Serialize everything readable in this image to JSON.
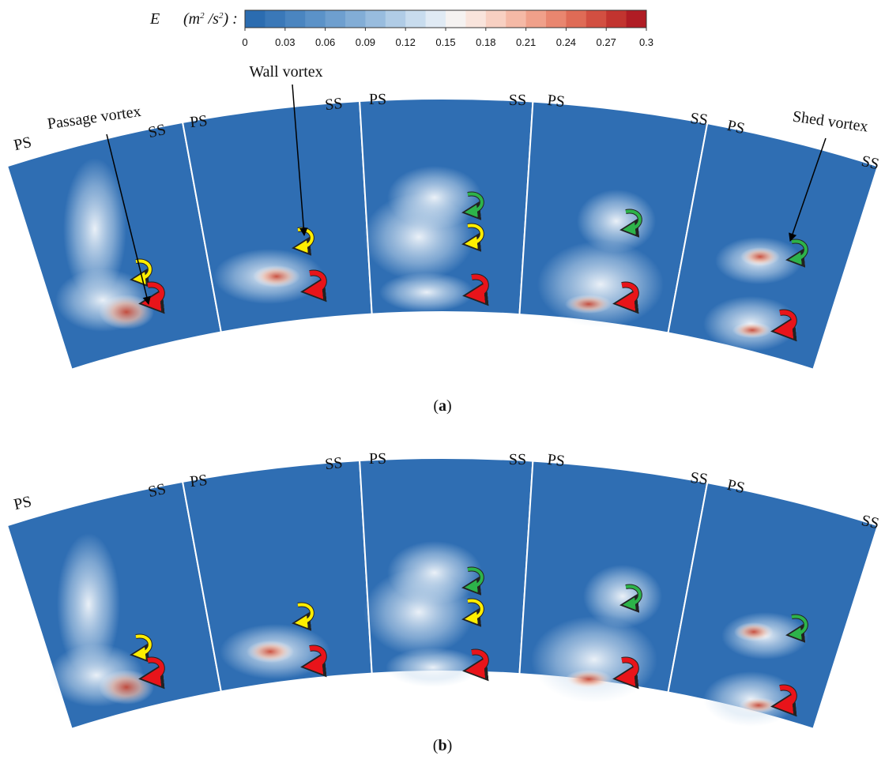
{
  "colorbar": {
    "symbol": "E",
    "unit_parts": [
      "(m",
      "2",
      " /s",
      "2",
      ") :"
    ],
    "range": [
      0,
      0.3
    ],
    "ticks": [
      0,
      0.03,
      0.06,
      0.09,
      0.12,
      0.15,
      0.18,
      0.21,
      0.24,
      0.27,
      0.3
    ],
    "colors": [
      "#2b6cb0",
      "#3a78b8",
      "#4a85c0",
      "#5b92c8",
      "#6e9fcf",
      "#82add6",
      "#98bcde",
      "#b0cce6",
      "#c8dcee",
      "#e0eaf4",
      "#f5f2f1",
      "#f9e4dc",
      "#f8d0c2",
      "#f5b9a6",
      "#f0a08a",
      "#e9866f",
      "#df6b56",
      "#d24f41",
      "#c2342f",
      "#b01c24"
    ]
  },
  "panels": [
    {
      "caption_parts": [
        "(",
        "a",
        ")"
      ],
      "sector_labels": [
        "PS",
        "SS",
        "PS",
        "SS",
        "PS",
        "SS",
        "PS",
        "SS",
        "PS",
        "SS"
      ],
      "annotations": [
        "Passage vortex",
        "Wall vortex",
        "Shed vortex"
      ]
    },
    {
      "caption_parts": [
        "(",
        "b",
        ")"
      ],
      "sector_labels": [
        "PS",
        "SS",
        "PS",
        "SS",
        "PS",
        "SS",
        "PS",
        "SS",
        "PS",
        "SS"
      ]
    }
  ]
}
